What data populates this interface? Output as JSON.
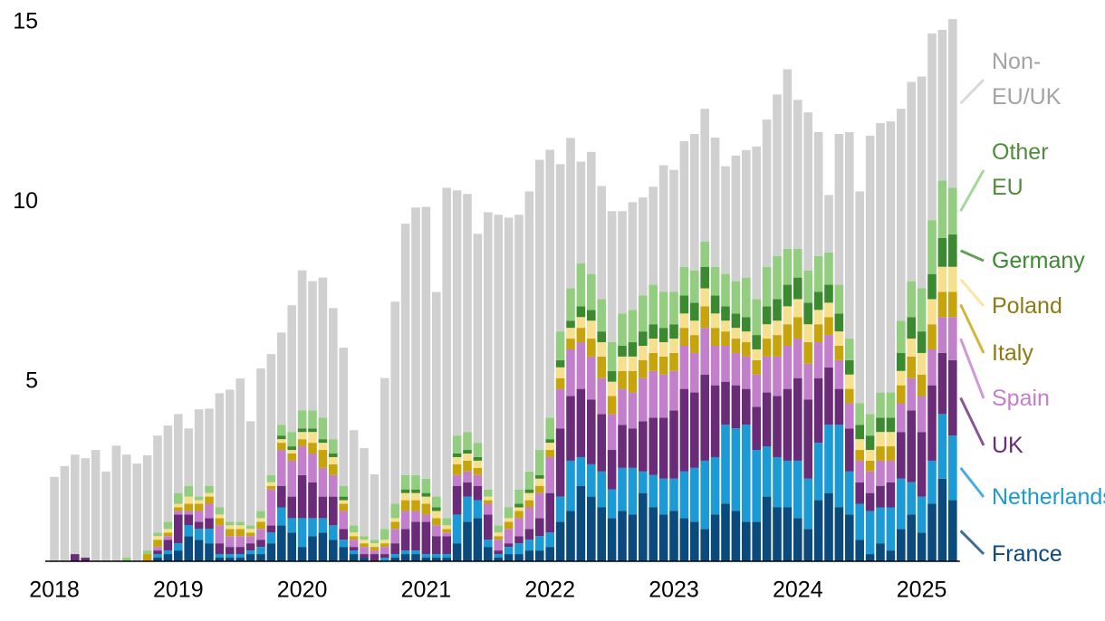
{
  "chart_data": {
    "type": "stacked_bar",
    "categories": [
      "2018",
      null,
      null,
      null,
      null,
      null,
      null,
      null,
      null,
      null,
      null,
      null,
      "2019",
      null,
      null,
      null,
      null,
      null,
      null,
      null,
      null,
      null,
      null,
      null,
      "2020",
      null,
      null,
      null,
      null,
      null,
      null,
      null,
      null,
      null,
      null,
      null,
      "2021",
      null,
      null,
      null,
      null,
      null,
      null,
      null,
      null,
      null,
      null,
      null,
      "2022",
      null,
      null,
      null,
      null,
      null,
      null,
      null,
      null,
      null,
      null,
      null,
      "2023",
      null,
      null,
      null,
      null,
      null,
      null,
      null,
      null,
      null,
      null,
      null,
      "2024",
      null,
      null,
      null,
      null,
      null,
      null,
      null,
      null,
      null,
      null,
      null,
      "2025",
      null,
      null,
      null
    ],
    "ylim": [
      0,
      15
    ],
    "yticks": [
      5,
      10,
      15
    ],
    "series": [
      {
        "name": "France",
        "color": "#0b4a7c",
        "label_color": "#0b4a7c",
        "values": [
          0,
          0,
          0,
          0,
          0,
          0,
          0,
          0,
          0,
          0,
          0.1,
          0.2,
          0.3,
          0.7,
          0.6,
          0.5,
          0.1,
          0.1,
          0.1,
          0.2,
          0.2,
          0.5,
          1.0,
          0.8,
          0.4,
          0.7,
          0.8,
          0.6,
          0.4,
          0.2,
          0.1,
          0,
          0,
          0.1,
          0.2,
          0.2,
          0.1,
          0.1,
          0.1,
          0.5,
          1.1,
          1.2,
          0.4,
          0.1,
          0.2,
          0.2,
          0.3,
          0.3,
          0.4,
          1.1,
          1.4,
          2.1,
          1.8,
          1.5,
          1.2,
          1.4,
          1.3,
          1.9,
          1.5,
          1.3,
          1.4,
          1.2,
          1.1,
          0.9,
          1.3,
          1.6,
          1.4,
          1.1,
          1.1,
          1.8,
          1.5,
          1.5,
          1.2,
          0.9,
          1.7,
          1.9,
          1.5,
          1.3,
          0.6,
          0.2,
          0.5,
          0.3,
          0.9,
          1.3,
          0.8,
          1.6,
          2.3,
          1.7
        ]
      },
      {
        "name": "Netherlands",
        "color": "#1b9ad6",
        "label_color": "#1b9ad6",
        "values": [
          0,
          0,
          0,
          0,
          0,
          0,
          0,
          0,
          0,
          0,
          0.1,
          0.1,
          0.2,
          0.3,
          0.3,
          0.4,
          0.1,
          0.1,
          0.1,
          0.1,
          0.2,
          0.3,
          0.5,
          0.4,
          0.8,
          0.5,
          0.4,
          0.4,
          0.2,
          0.1,
          0,
          0,
          0.1,
          0.1,
          0.1,
          0.1,
          0.1,
          0.1,
          0.1,
          0.8,
          0.7,
          0.5,
          0.2,
          0.1,
          0.2,
          0.3,
          0.3,
          0.4,
          0.4,
          0.7,
          1.4,
          0.8,
          0.9,
          1.0,
          0.8,
          1.2,
          1.3,
          0.6,
          0.9,
          1.0,
          0.9,
          1.3,
          1.5,
          1.9,
          1.6,
          2.2,
          2.3,
          2.7,
          2.0,
          1.4,
          1.4,
          1.3,
          1.6,
          1.4,
          1.6,
          1.9,
          2.3,
          1.2,
          1.0,
          1.2,
          1.0,
          1.2,
          1.4,
          0.9,
          1.0,
          1.2,
          1.8,
          1.8
        ]
      },
      {
        "name": "UK",
        "color": "#6a2c78",
        "label_color": "#6a2c78",
        "values": [
          0,
          0,
          0.2,
          0.1,
          0,
          0,
          0,
          0,
          0,
          0,
          0.1,
          0.3,
          0.8,
          0.3,
          0.2,
          0.3,
          0.3,
          0.2,
          0.2,
          0.2,
          0.2,
          0.2,
          0.6,
          0.6,
          1.2,
          1.0,
          0.6,
          0.8,
          0.3,
          0.1,
          0.1,
          0.2,
          0.1,
          0.3,
          0.6,
          0.8,
          0.9,
          0.5,
          0.5,
          0.8,
          0.4,
          0.4,
          0.7,
          0.1,
          0.1,
          0.2,
          0.3,
          0.5,
          1.1,
          1.9,
          1.8,
          1.9,
          1.8,
          1.6,
          1.1,
          1.2,
          1.1,
          1.4,
          1.6,
          1.7,
          1.9,
          2.3,
          2.1,
          2.4,
          2.0,
          1.2,
          1.2,
          1.0,
          1.2,
          1.5,
          1.7,
          2.0,
          2.3,
          2.2,
          1.8,
          1.6,
          1.0,
          1.2,
          0.6,
          0.5,
          0.6,
          0.7,
          1.3,
          2.0,
          1.8,
          2.1,
          1.7,
          2.1
        ]
      },
      {
        "name": "Spain",
        "color": "#c47fcc",
        "label_color": "#c47fcc",
        "values": [
          0,
          0,
          0,
          0,
          0,
          0,
          0,
          0,
          0,
          0,
          0.1,
          0.1,
          0.1,
          0.1,
          0.3,
          0.4,
          0.5,
          0.3,
          0.3,
          0.2,
          0.3,
          1.0,
          1.0,
          1.0,
          0.8,
          0.8,
          0.8,
          0.6,
          0.5,
          0.2,
          0.2,
          0.1,
          0.2,
          0.4,
          0.5,
          0.3,
          0.2,
          0.3,
          0.1,
          0.3,
          0.3,
          0.3,
          0.3,
          0.3,
          0.4,
          0.5,
          0.6,
          0.7,
          1.0,
          1.1,
          1.3,
          1.3,
          1.2,
          1.0,
          1.0,
          1.0,
          1.0,
          1.2,
          1.3,
          1.2,
          1.1,
          1.2,
          1.1,
          1.3,
          1.1,
          1.0,
          0.9,
          0.9,
          0.9,
          1.0,
          1.1,
          1.2,
          1.1,
          1.0,
          1.0,
          0.9,
          0.8,
          0.7,
          0.6,
          0.6,
          0.7,
          0.6,
          0.8,
          0.9,
          1.0,
          1.0,
          1.0,
          1.2
        ]
      },
      {
        "name": "Italy",
        "color": "#c8a40c",
        "label_color": "#8c7a14",
        "values": [
          0,
          0,
          0,
          0,
          0,
          0,
          0,
          0,
          0,
          0.2,
          0.2,
          0.1,
          0.1,
          0.2,
          0.2,
          0.2,
          0.2,
          0.2,
          0.2,
          0.1,
          0.2,
          0.1,
          0.2,
          0.2,
          0.2,
          0.3,
          0.5,
          0.3,
          0.2,
          0.1,
          0.1,
          0.1,
          0.1,
          0.2,
          0.3,
          0.3,
          0.3,
          0.2,
          0.1,
          0.3,
          0.3,
          0.2,
          0.1,
          0.1,
          0.2,
          0.2,
          0.2,
          0.2,
          0.2,
          0.3,
          0.3,
          0.4,
          0.5,
          0.6,
          0.5,
          0.5,
          0.6,
          0.5,
          0.5,
          0.5,
          0.5,
          0.5,
          0.5,
          0.6,
          0.5,
          0.4,
          0.4,
          0.4,
          0.4,
          0.5,
          0.6,
          0.6,
          0.6,
          0.6,
          0.5,
          0.5,
          0.4,
          0.4,
          0.3,
          0.3,
          0.4,
          0.4,
          0.5,
          0.6,
          0.6,
          0.7,
          0.7,
          0.7
        ]
      },
      {
        "name": "Poland",
        "color": "#f6e08e",
        "label_color": "#8c7a14",
        "values": [
          0,
          0,
          0,
          0,
          0,
          0,
          0,
          0,
          0,
          0,
          0.1,
          0.1,
          0.1,
          0.2,
          0.1,
          0.1,
          0.1,
          0.1,
          0.1,
          0.1,
          0.1,
          0.1,
          0.1,
          0.1,
          0.2,
          0.3,
          0.2,
          0.2,
          0.1,
          0.1,
          0.1,
          0.1,
          0.1,
          0.1,
          0.2,
          0.2,
          0.2,
          0.2,
          0.1,
          0.2,
          0.2,
          0.2,
          0.1,
          0.1,
          0.1,
          0.1,
          0.2,
          0.2,
          0.2,
          0.3,
          0.3,
          0.3,
          0.5,
          0.4,
          0.4,
          0.4,
          0.4,
          0.4,
          0.4,
          0.4,
          0.4,
          0.4,
          0.4,
          0.5,
          0.4,
          0.3,
          0.3,
          0.3,
          0.3,
          0.4,
          0.4,
          0.5,
          0.5,
          0.5,
          0.4,
          0.4,
          0.4,
          0.4,
          0.3,
          0.3,
          0.4,
          0.4,
          0.4,
          0.5,
          0.6,
          0.7,
          0.7,
          0.7
        ]
      },
      {
        "name": "Germany",
        "color": "#3b8a30",
        "label_color": "#3b8a30",
        "values": [
          0,
          0,
          0,
          0,
          0,
          0,
          0,
          0,
          0,
          0,
          0,
          0,
          0,
          0,
          0,
          0,
          0,
          0,
          0,
          0,
          0,
          0,
          0.1,
          0.1,
          0.1,
          0.1,
          0.1,
          0.1,
          0.1,
          0,
          0,
          0,
          0,
          0,
          0.1,
          0.1,
          0.1,
          0.1,
          0,
          0.1,
          0.1,
          0.1,
          0,
          0,
          0,
          0.1,
          0.1,
          0.1,
          0.1,
          0.2,
          0.2,
          0.3,
          0.3,
          0.3,
          0.3,
          0.3,
          0.4,
          0.4,
          0.4,
          0.4,
          0.4,
          0.5,
          0.5,
          0.6,
          0.5,
          0.4,
          0.4,
          0.4,
          0.4,
          0.5,
          0.6,
          0.6,
          0.6,
          0.6,
          0.5,
          0.5,
          0.5,
          0.4,
          0.4,
          0.4,
          0.4,
          0.4,
          0.5,
          0.6,
          0.6,
          0.7,
          0.8,
          0.9
        ]
      },
      {
        "name": "Other EU",
        "color": "#92cd80",
        "label_color": "#4f8c3c",
        "values": [
          0,
          0,
          0,
          0,
          0,
          0,
          0,
          0.1,
          0,
          0.1,
          0.1,
          0.2,
          0.3,
          0.3,
          0.1,
          0.2,
          0.2,
          0.1,
          0.1,
          0.1,
          0.2,
          0.2,
          0.3,
          0.4,
          0.5,
          0.5,
          0.6,
          0.4,
          0.3,
          0.2,
          0.1,
          0.1,
          0.3,
          0.4,
          0.4,
          0.4,
          0.4,
          0.3,
          0.2,
          0.5,
          0.5,
          0.4,
          0.2,
          0.2,
          0.3,
          0.4,
          0.5,
          0.7,
          0.6,
          0.8,
          0.9,
          1.2,
          1.0,
          0.9,
          0.8,
          0.9,
          0.9,
          1.0,
          1.1,
          1.0,
          0.9,
          0.8,
          0.9,
          0.7,
          0.8,
          0.9,
          0.9,
          1.1,
          1.0,
          1.1,
          1.2,
          1.0,
          0.8,
          0.9,
          1.0,
          0.9,
          0.8,
          0.6,
          0.6,
          0.6,
          0.7,
          0.7,
          0.9,
          1.0,
          1.2,
          1.5,
          1.6,
          1.3
        ]
      },
      {
        "name": "Non-EU/UK",
        "color": "#d0d0d0",
        "label_color": "#a3a3a3",
        "values": [
          2.35,
          2.65,
          2.77,
          2.77,
          3.1,
          2.5,
          3.22,
          2.87,
          2.72,
          2.65,
          2.7,
          2.68,
          2.2,
          1.6,
          2.43,
          2.15,
          3.18,
          3.68,
          3.99,
          2.9,
          3.97,
          3.37,
          2.57,
          3.53,
          3.9,
          3.6,
          3.9,
          3.65,
          3.85,
          2.65,
          2.45,
          1.82,
          4.2,
          5.63,
          7.0,
          7.45,
          7.57,
          5.7,
          9.2,
          6.83,
          6.63,
          5.82,
          7.72,
          8.65,
          8.07,
          7.65,
          7.8,
          8.08,
          7.46,
          4.66,
          4.19,
          2.83,
          3.4,
          3.15,
          3.65,
          2.85,
          3.0,
          2.73,
          2.73,
          3.53,
          3.4,
          3.5,
          3.8,
          3.7,
          3.6,
          3.0,
          3.5,
          3.55,
          4.25,
          4.1,
          4.5,
          5.0,
          4.15,
          4.4,
          3.45,
          1.6,
          4.2,
          5.75,
          5.9,
          7.75,
          7.5,
          7.55,
          5.9,
          5.55,
          5.9,
          5.2,
          4.2,
          4.7
        ]
      }
    ]
  }
}
